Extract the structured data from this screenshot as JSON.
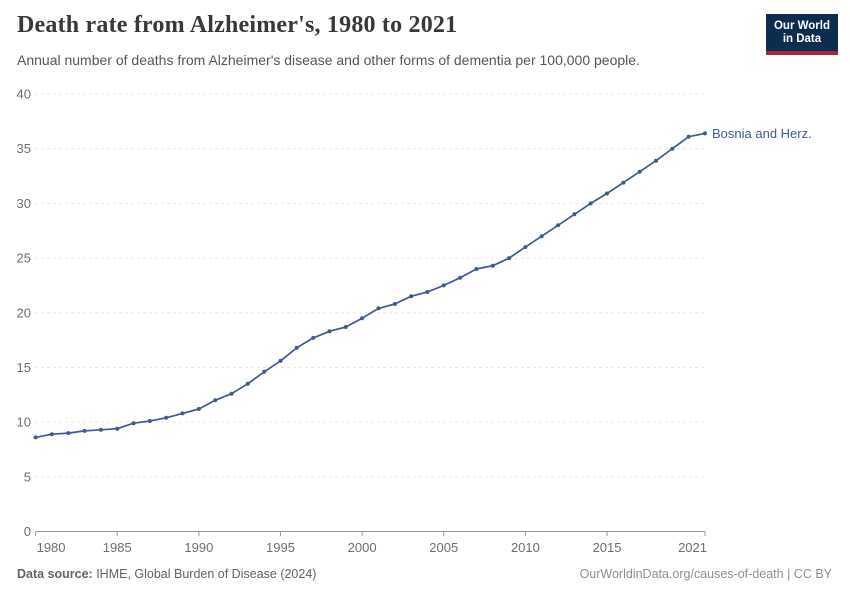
{
  "header": {
    "title": "Death rate from Alzheimer's, 1980 to 2021",
    "subtitle": "Annual number of deaths from Alzheimer's disease and other forms of dementia per 100,000 people.",
    "logo": {
      "line1": "Our World",
      "line2": "in Data"
    }
  },
  "colors": {
    "series_blue": "#3d5a96",
    "gridline": "#e1e1e1",
    "axis": "#999999",
    "tick_text": "#6e6e6e",
    "logo_bg": "#0d2d4e",
    "logo_accent": "#a12742"
  },
  "chart_data": {
    "type": "line",
    "title": "Death rate from Alzheimer's, 1980 to 2021",
    "subtitle": "Annual number of deaths from Alzheimer's disease and other forms of dementia per 100,000 people.",
    "xlabel": "",
    "ylabel": "",
    "xlim": [
      1980,
      2021
    ],
    "ylim": [
      0,
      40
    ],
    "x_ticks": [
      1980,
      1985,
      1990,
      1995,
      2000,
      2005,
      2010,
      2015,
      2021
    ],
    "y_ticks": [
      0,
      5,
      10,
      15,
      20,
      25,
      30,
      35,
      40
    ],
    "grid": "horizontal-dashed",
    "legend_position": "end-of-line label",
    "markers": true,
    "series": [
      {
        "name": "Bosnia and Herz.",
        "color": "#3d5a96",
        "x": [
          1980,
          1981,
          1982,
          1983,
          1984,
          1985,
          1986,
          1987,
          1988,
          1989,
          1990,
          1991,
          1992,
          1993,
          1994,
          1995,
          1996,
          1997,
          1998,
          1999,
          2000,
          2001,
          2002,
          2003,
          2004,
          2005,
          2006,
          2007,
          2008,
          2009,
          2010,
          2011,
          2012,
          2013,
          2014,
          2015,
          2016,
          2017,
          2018,
          2019,
          2020,
          2021
        ],
        "values": [
          8.6,
          8.9,
          9.0,
          9.2,
          9.3,
          9.4,
          9.9,
          10.1,
          10.4,
          10.8,
          11.2,
          12.0,
          12.6,
          13.5,
          14.6,
          15.6,
          16.8,
          17.7,
          18.3,
          18.7,
          19.5,
          20.4,
          20.8,
          21.5,
          21.9,
          22.5,
          23.2,
          24.0,
          24.3,
          25.0,
          26.0,
          27.0,
          28.0,
          29.0,
          30.0,
          30.9,
          31.9,
          32.9,
          33.9,
          35.0,
          36.1,
          36.4
        ]
      }
    ]
  },
  "footer": {
    "source_label": "Data source:",
    "source_text": " IHME, Global Burden of Disease (2024)",
    "credit": "OurWorldinData.org/causes-of-death | CC BY"
  }
}
